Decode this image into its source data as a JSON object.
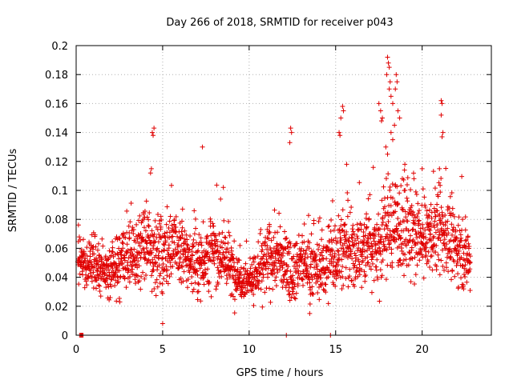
{
  "chart_data": {
    "type": "scatter",
    "title": "Day 266 of 2018, SRMTID for receiver p043",
    "xlabel": "GPS time / hours",
    "ylabel": "SRMTID / TECUs",
    "xlim": [
      0,
      24
    ],
    "ylim": [
      0,
      0.2
    ],
    "xticks": [
      0,
      5,
      10,
      15,
      20
    ],
    "yticks": [
      0,
      0.02,
      0.04,
      0.06,
      0.08,
      0.1,
      0.12,
      0.14,
      0.16,
      0.18,
      0.2
    ],
    "grid": true,
    "marker": "plus",
    "series": [
      {
        "name": "SRMTID",
        "color": "#e00000",
        "profile_x": [
          0.1,
          0.5,
          1.0,
          1.5,
          2.0,
          2.5,
          3.0,
          3.5,
          4.0,
          4.5,
          5.0,
          5.5,
          6.0,
          6.5,
          7.0,
          7.5,
          8.0,
          8.5,
          9.0,
          9.5,
          10.0,
          10.5,
          11.0,
          11.5,
          12.0,
          12.5,
          13.0,
          13.5,
          14.0,
          14.5,
          15.0,
          15.5,
          16.0,
          16.5,
          17.0,
          17.5,
          18.0,
          18.5,
          19.0,
          19.5,
          20.0,
          20.5,
          21.0,
          21.5,
          22.0,
          22.5,
          22.8
        ],
        "profile_center": [
          0.055,
          0.045,
          0.05,
          0.045,
          0.042,
          0.05,
          0.055,
          0.058,
          0.062,
          0.058,
          0.055,
          0.062,
          0.058,
          0.052,
          0.05,
          0.055,
          0.058,
          0.055,
          0.045,
          0.04,
          0.038,
          0.042,
          0.05,
          0.055,
          0.05,
          0.045,
          0.05,
          0.048,
          0.045,
          0.05,
          0.058,
          0.062,
          0.055,
          0.058,
          0.065,
          0.06,
          0.075,
          0.078,
          0.072,
          0.068,
          0.065,
          0.07,
          0.072,
          0.068,
          0.06,
          0.055,
          0.05
        ],
        "profile_spread": [
          0.015,
          0.015,
          0.02,
          0.015,
          0.015,
          0.025,
          0.025,
          0.025,
          0.025,
          0.025,
          0.025,
          0.025,
          0.025,
          0.02,
          0.02,
          0.025,
          0.025,
          0.02,
          0.02,
          0.015,
          0.012,
          0.015,
          0.025,
          0.025,
          0.02,
          0.02,
          0.02,
          0.02,
          0.02,
          0.025,
          0.03,
          0.03,
          0.025,
          0.025,
          0.03,
          0.03,
          0.035,
          0.035,
          0.03,
          0.03,
          0.025,
          0.025,
          0.03,
          0.025,
          0.025,
          0.02,
          0.02
        ],
        "n_points": 2200,
        "outliers": [
          [
            4.4,
            0.14
          ],
          [
            4.45,
            0.138
          ],
          [
            4.5,
            0.143
          ],
          [
            4.35,
            0.115
          ],
          [
            4.3,
            0.112
          ],
          [
            7.3,
            0.13
          ],
          [
            12.4,
            0.143
          ],
          [
            12.45,
            0.14
          ],
          [
            12.35,
            0.133
          ],
          [
            15.2,
            0.14
          ],
          [
            15.25,
            0.138
          ],
          [
            15.4,
            0.158
          ],
          [
            15.45,
            0.155
          ],
          [
            15.3,
            0.15
          ],
          [
            17.5,
            0.16
          ],
          [
            17.6,
            0.155
          ],
          [
            17.7,
            0.15
          ],
          [
            17.65,
            0.148
          ],
          [
            18.0,
            0.192
          ],
          [
            18.05,
            0.188
          ],
          [
            18.1,
            0.185
          ],
          [
            18.15,
            0.175
          ],
          [
            17.95,
            0.18
          ],
          [
            18.1,
            0.17
          ],
          [
            18.2,
            0.165
          ],
          [
            18.3,
            0.16
          ],
          [
            18.5,
            0.18
          ],
          [
            18.55,
            0.175
          ],
          [
            18.45,
            0.17
          ],
          [
            18.6,
            0.155
          ],
          [
            18.7,
            0.15
          ],
          [
            18.4,
            0.145
          ],
          [
            18.2,
            0.14
          ],
          [
            18.3,
            0.135
          ],
          [
            17.9,
            0.13
          ],
          [
            18.0,
            0.125
          ],
          [
            21.1,
            0.162
          ],
          [
            21.15,
            0.16
          ],
          [
            21.1,
            0.152
          ],
          [
            21.2,
            0.14
          ],
          [
            21.15,
            0.137
          ],
          [
            5.0,
            0.008
          ],
          [
            13.5,
            0.015
          ],
          [
            19.0,
            0.118
          ],
          [
            20.0,
            0.115
          ],
          [
            21.0,
            0.115
          ]
        ],
        "zero_x": [
          0.2,
          0.25,
          0.3,
          0.35,
          0.4,
          12.15,
          14.7
        ]
      }
    ]
  }
}
